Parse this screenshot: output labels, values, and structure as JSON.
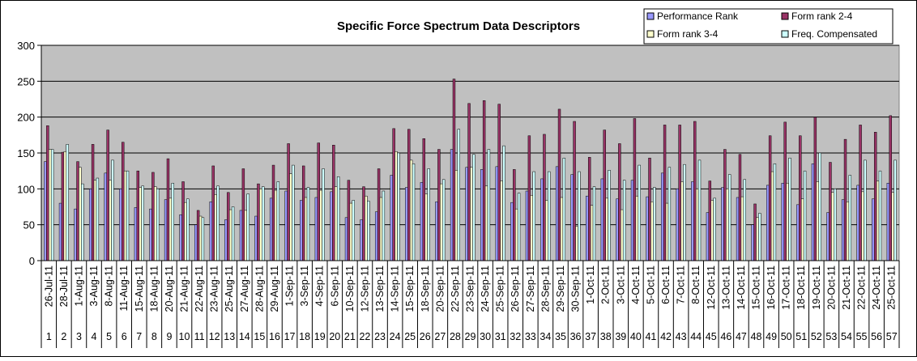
{
  "chart_data": {
    "type": "bar",
    "title": "Specific Force Spectrum Data Descriptors",
    "ylim": [
      0,
      300
    ],
    "yticks": [
      0,
      50,
      100,
      150,
      200,
      250,
      300
    ],
    "grid": true,
    "legend_position": "top-right",
    "plot_background": "#c0c0c0",
    "categories": [
      "26-Jul-11",
      "28-Jul-11",
      "1-Aug-11",
      "3-Aug-11",
      "8-Aug-11",
      "11-Aug-11",
      "15-Aug-11",
      "18-Aug-11",
      "20-Aug-11",
      "21-Aug-11",
      "22-Aug-11",
      "23-Aug-11",
      "25-Aug-11",
      "27-Aug-11",
      "28-Aug-11",
      "29-Aug-11",
      "1-Sep-11",
      "3-Sep-11",
      "4-Sep-11",
      "6-Sep-11",
      "10-Sep-11",
      "12-Sep-11",
      "13-Sep-11",
      "14-Sep-11",
      "15-Sep-11",
      "18-Sep-11",
      "20-Sep-11",
      "22-Sep-11",
      "23-Sep-11",
      "24-Sep-11",
      "25-Sep-11",
      "26-Sep-11",
      "27-Sep-11",
      "28-Sep-11",
      "29-Sep-11",
      "30-Sep-11",
      "1-Oct-11",
      "2-Oct-11",
      "3-Oct-11",
      "4-Oct-11",
      "5-Oct-11",
      "6-Oct-11",
      "7-Oct-11",
      "8-Oct-11",
      "12-Oct-11",
      "13-Oct-11",
      "14-Oct-11",
      "15-Oct-11",
      "16-Oct-11",
      "17-Oct-11",
      "18-Oct-11",
      "19-Oct-11",
      "20-Oct-11",
      "21-Oct-11",
      "22-Oct-11",
      "24-Oct-11",
      "25-Oct-11"
    ],
    "index_labels": [
      "1",
      "2",
      "3",
      "4",
      "5",
      "6",
      "7",
      "8",
      "9",
      "10",
      "11",
      "12",
      "13",
      "14",
      "15",
      "16",
      "17",
      "18",
      "19",
      "20",
      "21",
      "22",
      "23",
      "24",
      "25",
      "26",
      "27",
      "28",
      "29",
      "30",
      "31",
      "32",
      "33",
      "34",
      "35",
      "36",
      "37",
      "38",
      "39",
      "40",
      "41",
      "42",
      "43",
      "44",
      "45",
      "46",
      "47",
      "48",
      "49",
      "50",
      "51",
      "52",
      "53",
      "54",
      "55",
      "56",
      "57"
    ],
    "series": [
      {
        "name": "Performance Rank",
        "color": "#9999ff",
        "values": [
          138,
          80,
          72,
          100,
          122,
          100,
          74,
          72,
          85,
          64,
          50,
          82,
          57,
          70,
          62,
          87,
          97,
          84,
          88,
          96,
          60,
          57,
          68,
          119,
          102,
          109,
          82,
          155,
          130,
          127,
          131,
          81,
          97,
          114,
          131,
          120,
          90,
          114,
          86,
          112,
          89,
          122,
          100,
          110,
          67,
          102,
          88,
          50,
          105,
          108,
          78,
          135,
          67,
          85,
          105,
          86,
          108
        ]
      },
      {
        "name": "Form rank 2-4",
        "color": "#993366",
        "values": [
          188,
          151,
          138,
          162,
          182,
          165,
          125,
          123,
          142,
          110,
          70,
          132,
          95,
          128,
          107,
          133,
          163,
          132,
          164,
          161,
          112,
          103,
          128,
          184,
          183,
          170,
          155,
          253,
          219,
          223,
          218,
          127,
          174,
          176,
          211,
          194,
          144,
          182,
          163,
          198,
          143,
          189,
          189,
          194,
          111,
          155,
          148,
          79,
          174,
          193,
          174,
          200,
          137,
          169,
          189,
          179,
          202
        ]
      },
      {
        "name": "Form rank 3-4",
        "color": "#ffffcc",
        "values": [
          155,
          152,
          130,
          112,
          112,
          125,
          102,
          103,
          87,
          81,
          62,
          92,
          71,
          70,
          100,
          98,
          121,
          88,
          98,
          103,
          80,
          90,
          88,
          152,
          140,
          93,
          107,
          126,
          130,
          104,
          111,
          72,
          91,
          84,
          88,
          48,
          77,
          87,
          71,
          90,
          82,
          80,
          110,
          100,
          84,
          100,
          89,
          60,
          124,
          108,
          86,
          110,
          95,
          82,
          96,
          111,
          95
        ]
      },
      {
        "name": "Freq. Compensated",
        "color": "#ccffff",
        "values": [
          155,
          162,
          107,
          115,
          140,
          125,
          104,
          100,
          108,
          86,
          60,
          104,
          75,
          93,
          103,
          110,
          133,
          102,
          128,
          117,
          84,
          83,
          97,
          150,
          135,
          128,
          113,
          183,
          148,
          155,
          160,
          94,
          124,
          124,
          143,
          124,
          103,
          126,
          112,
          133,
          102,
          130,
          134,
          140,
          87,
          120,
          113,
          66,
          135,
          143,
          125,
          150,
          100,
          119,
          140,
          125,
          140
        ]
      }
    ]
  }
}
